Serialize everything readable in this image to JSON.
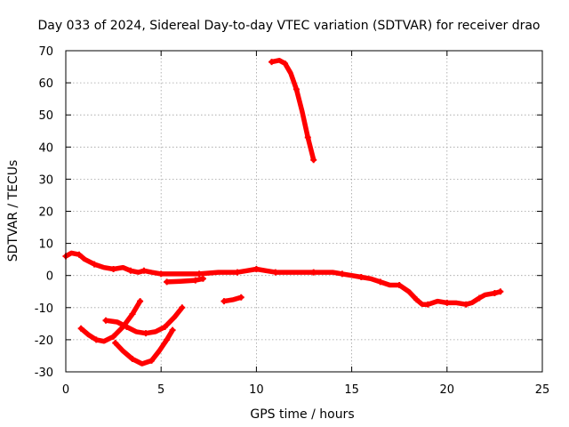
{
  "chart_data": {
    "type": "line",
    "title": "Day 033 of 2024, Sidereal Day-to-day VTEC variation (SDTVAR) for receiver drao",
    "xlabel": "GPS time / hours",
    "ylabel": "SDTVAR / TECUs",
    "xlim": [
      0,
      25
    ],
    "ylim": [
      -30,
      70
    ],
    "xticks": [
      "0",
      "5",
      "10",
      "15",
      "20",
      "25"
    ],
    "yticks": [
      "70",
      "60",
      "50",
      "40",
      "30",
      "20",
      "10",
      "0",
      "-10",
      "-20",
      "-30"
    ],
    "grid": true,
    "series_color": "#ff0000",
    "series": [
      {
        "name": "main-trace",
        "points": [
          [
            0,
            6
          ],
          [
            0.3,
            7
          ],
          [
            0.7,
            6.5
          ],
          [
            1.0,
            5
          ],
          [
            1.5,
            3.5
          ],
          [
            2.0,
            2.5
          ],
          [
            2.5,
            2
          ],
          [
            3.0,
            2.5
          ],
          [
            3.4,
            1.5
          ],
          [
            3.8,
            1
          ],
          [
            4.1,
            1.5
          ],
          [
            4.5,
            1
          ],
          [
            5.0,
            0.5
          ],
          [
            6.0,
            0.5
          ],
          [
            7.0,
            0.5
          ],
          [
            8.0,
            1
          ],
          [
            9.0,
            1
          ],
          [
            9.5,
            1.5
          ],
          [
            10.0,
            2
          ],
          [
            10.5,
            1.5
          ],
          [
            11.0,
            1
          ],
          [
            12.0,
            1
          ],
          [
            13.0,
            1
          ],
          [
            14.0,
            1
          ],
          [
            14.5,
            0.5
          ],
          [
            15.0,
            0
          ],
          [
            15.5,
            -0.5
          ],
          [
            16.0,
            -1
          ],
          [
            16.5,
            -2
          ],
          [
            17.0,
            -3
          ],
          [
            17.5,
            -3
          ],
          [
            18.0,
            -5
          ],
          [
            18.4,
            -7.5
          ],
          [
            18.7,
            -9
          ],
          [
            19.0,
            -9
          ],
          [
            19.5,
            -8
          ],
          [
            20.0,
            -8.5
          ],
          [
            20.5,
            -8.5
          ],
          [
            21.0,
            -9
          ],
          [
            21.3,
            -8.5
          ],
          [
            21.7,
            -7
          ],
          [
            22.0,
            -6
          ],
          [
            22.5,
            -5.5
          ],
          [
            22.8,
            -5
          ]
        ]
      },
      {
        "name": "mid-segment",
        "points": [
          [
            5.3,
            -2
          ],
          [
            6.0,
            -1.8
          ],
          [
            6.8,
            -1.5
          ],
          [
            7.2,
            -1
          ]
        ]
      },
      {
        "name": "short-segment",
        "points": [
          [
            8.3,
            -8
          ],
          [
            8.8,
            -7.5
          ],
          [
            9.2,
            -6.8
          ]
        ]
      },
      {
        "name": "arc-a",
        "points": [
          [
            0.8,
            -16.5
          ],
          [
            1.2,
            -18.5
          ],
          [
            1.6,
            -20
          ],
          [
            2.0,
            -20.5
          ],
          [
            2.5,
            -19
          ],
          [
            3.0,
            -16
          ],
          [
            3.5,
            -12
          ],
          [
            3.9,
            -8
          ]
        ]
      },
      {
        "name": "arc-b",
        "points": [
          [
            2.1,
            -14
          ],
          [
            2.7,
            -14.5
          ],
          [
            3.2,
            -16
          ],
          [
            3.7,
            -17.5
          ],
          [
            4.2,
            -18
          ],
          [
            4.7,
            -17.5
          ],
          [
            5.2,
            -16
          ],
          [
            5.7,
            -13
          ],
          [
            6.1,
            -10
          ]
        ]
      },
      {
        "name": "arc-c",
        "points": [
          [
            2.6,
            -21
          ],
          [
            3.0,
            -23.5
          ],
          [
            3.5,
            -26
          ],
          [
            4.0,
            -27.5
          ],
          [
            4.5,
            -26.5
          ],
          [
            4.9,
            -23.5
          ],
          [
            5.3,
            -20
          ],
          [
            5.6,
            -17
          ]
        ]
      },
      {
        "name": "spike-segment",
        "points": [
          [
            10.8,
            66.5
          ],
          [
            11.2,
            67
          ],
          [
            11.5,
            66
          ],
          [
            11.8,
            63
          ],
          [
            12.1,
            58
          ],
          [
            12.4,
            51
          ],
          [
            12.7,
            43
          ],
          [
            13.0,
            36
          ]
        ]
      }
    ]
  }
}
